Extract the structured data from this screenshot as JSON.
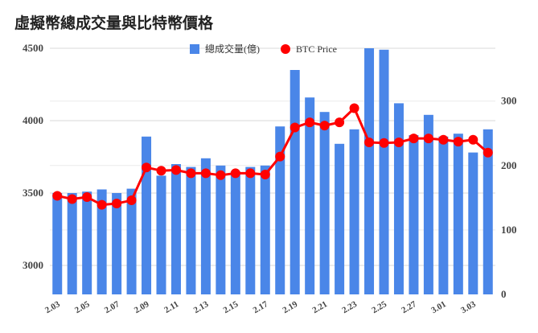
{
  "chart_data": {
    "type": "bar",
    "title": "虛擬幣總成交量與比特幣價格",
    "categories": [
      "2.03",
      "2.04",
      "2.05",
      "2.06",
      "2.07",
      "2.08",
      "2.09",
      "2.10",
      "2.11",
      "2.12",
      "2.13",
      "2.14",
      "2.15",
      "2.16",
      "2.17",
      "2.18",
      "2.19",
      "2.20",
      "2.21",
      "2.22",
      "2.23",
      "2.24",
      "2.25",
      "2.26",
      "2.27",
      "2.28",
      "3.01",
      "3.02",
      "3.03",
      "3.04"
    ],
    "x_tick_labels": [
      "2.03",
      "2.05",
      "2.07",
      "2.09",
      "2.11",
      "2.13",
      "2.15",
      "2.17",
      "2.19",
      "2.21",
      "2.23",
      "2.25",
      "2.27",
      "3.01",
      "3.03"
    ],
    "series": [
      {
        "name": "總成交量(億)",
        "type": "bar",
        "axis": "left",
        "color": "#4a86e8",
        "values": [
          3500,
          3500,
          3510,
          3525,
          3500,
          3530,
          3890,
          3620,
          3700,
          3680,
          3740,
          3690,
          3650,
          3680,
          3690,
          3960,
          4350,
          4160,
          4060,
          3840,
          3940,
          4500,
          4490,
          4120,
          3900,
          4040,
          3890,
          3910,
          3780,
          3940
        ]
      },
      {
        "name": "BTC Price",
        "type": "line",
        "axis": "right",
        "color": "#ff0000",
        "values": [
          153,
          148,
          151,
          139,
          141,
          146,
          197,
          192,
          193,
          188,
          188,
          185,
          188,
          188,
          186,
          214,
          259,
          267,
          262,
          267,
          289,
          236,
          235,
          236,
          242,
          242,
          240,
          237,
          240,
          220
        ]
      }
    ],
    "y_left": {
      "ticks": [
        3000,
        3500,
        4000,
        4500
      ],
      "range": [
        2800,
        4500
      ]
    },
    "y_right": {
      "ticks": [
        0,
        100,
        200,
        300
      ],
      "range": [
        0,
        382
      ]
    },
    "legend": "top-center",
    "grid": true
  }
}
